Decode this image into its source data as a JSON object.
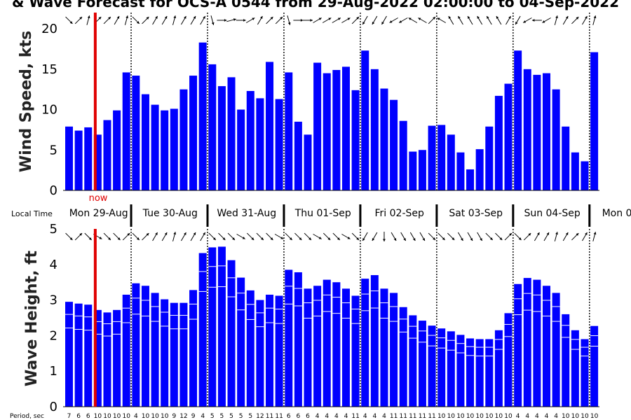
{
  "title": "& Wave Forecast for OCS-A 0544 from 29-Aug-2022 02:00:00 to 04-Sep-2022",
  "now_label": "now",
  "local_time_label": "Local Time",
  "period_label": "Period, sec",
  "days": [
    "Mon 29-Aug",
    "Tue 30-Aug",
    "Wed 31-Aug",
    "Thu 01-Sep",
    "Fri 02-Sep",
    "Sat 03-Sep",
    "Sun 04-Sep",
    "Mon 0"
  ],
  "colors": {
    "bar": "#0000ff",
    "now_line": "#e00000",
    "grid": "#000000",
    "inner_line": "#ffffff"
  },
  "chart_data": [
    {
      "type": "bar",
      "ylabel": "Wind Speed, kts",
      "ylim": [
        0,
        22
      ],
      "yticks": [
        0,
        5,
        10,
        15,
        20
      ],
      "values": [
        7.9,
        7.4,
        7.8,
        6.9,
        8.7,
        9.9,
        14.6,
        14.2,
        11.9,
        10.6,
        9.9,
        10.1,
        12.5,
        14.2,
        18.3,
        15.6,
        12.9,
        14,
        10,
        12.3,
        11.4,
        15.9,
        11.3,
        14.6,
        8.5,
        6.9,
        15.8,
        14.5,
        14.9,
        15.3,
        12.4,
        17.3,
        15,
        12.6,
        11.2,
        8.6,
        4.8,
        5.0,
        8.0,
        8.1,
        6.9,
        4.7,
        2.6,
        5.1,
        7.9,
        11.7,
        13.2,
        17.3,
        15,
        14.3,
        14.5,
        12.5,
        7.9,
        4.7,
        3.6,
        17.1
      ],
      "direction_deg": [
        135,
        45,
        15,
        45,
        45,
        30,
        15,
        135,
        45,
        30,
        30,
        15,
        30,
        30,
        30,
        165,
        90,
        75,
        90,
        60,
        30,
        45,
        45,
        165,
        90,
        90,
        60,
        60,
        60,
        60,
        45,
        210,
        210,
        210,
        240,
        240,
        300,
        300,
        45,
        300,
        330,
        330,
        330,
        330,
        330,
        330,
        30,
        210,
        240,
        270,
        240,
        15,
        30,
        45,
        30,
        15
      ]
    },
    {
      "type": "bar",
      "ylabel": "Wave Height, ft",
      "ylim": [
        0,
        5
      ],
      "yticks": [
        0,
        1,
        2,
        3,
        4,
        5
      ],
      "values": [
        2.95,
        2.9,
        2.87,
        2.72,
        2.65,
        2.72,
        3.15,
        3.47,
        3.4,
        3.2,
        3.02,
        2.92,
        2.92,
        3.28,
        4.32,
        4.48,
        4.5,
        4.12,
        3.63,
        3.27,
        3,
        3.15,
        3.12,
        3.85,
        3.78,
        3.32,
        3.4,
        3.57,
        3.5,
        3.32,
        3.12,
        3.6,
        3.7,
        3.32,
        3.2,
        2.8,
        2.57,
        2.42,
        2.28,
        2.2,
        2.12,
        2.02,
        1.92,
        1.9,
        1.9,
        2.15,
        2.63,
        3.45,
        3.62,
        3.57,
        3.4,
        3.2,
        2.6,
        2.15,
        1.9,
        2.27
      ],
      "period_sec": [
        7,
        6,
        6,
        10,
        10,
        10,
        10,
        4,
        10,
        10,
        10,
        9,
        12,
        9,
        4,
        5,
        5,
        5,
        5,
        5,
        12,
        11,
        11,
        6,
        6,
        6,
        4,
        4,
        4,
        4,
        11,
        4,
        4,
        4,
        11,
        11,
        11,
        11,
        11,
        10,
        10,
        10,
        10,
        10,
        10,
        10,
        10,
        4,
        4,
        4,
        4,
        4,
        10,
        10,
        10,
        10
      ],
      "direction_deg": [
        135,
        45,
        135,
        120,
        135,
        135,
        45,
        135,
        45,
        30,
        30,
        15,
        30,
        30,
        30,
        135,
        135,
        135,
        120,
        135,
        135,
        135,
        120,
        135,
        135,
        135,
        120,
        135,
        135,
        120,
        135,
        210,
        210,
        180,
        150,
        150,
        150,
        150,
        135,
        135,
        135,
        150,
        150,
        150,
        135,
        135,
        45,
        135,
        45,
        30,
        30,
        15,
        30,
        45,
        30,
        15
      ]
    }
  ]
}
